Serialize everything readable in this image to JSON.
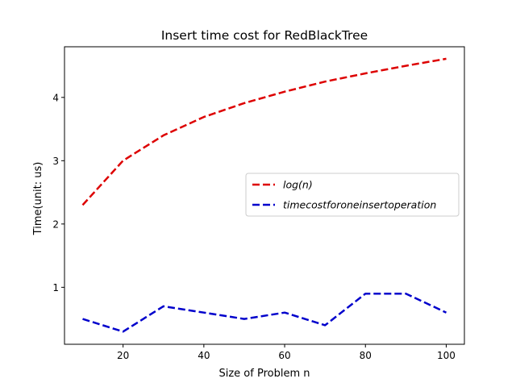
{
  "chart_data": {
    "type": "line",
    "title": "Insert time cost for RedBlackTree",
    "xlabel": "Size of Problem n",
    "ylabel": "Time(unit: us)",
    "x": [
      10,
      20,
      30,
      40,
      50,
      60,
      70,
      80,
      90,
      100
    ],
    "xlim": [
      5.5,
      104.5
    ],
    "ylim": [
      0.1,
      4.8
    ],
    "xticks": [
      20,
      40,
      60,
      80,
      100
    ],
    "yticks": [
      1,
      2,
      3,
      4
    ],
    "grid": false,
    "legend_position": "center-right",
    "series": [
      {
        "name": "log(n)",
        "color": "#dd0000",
        "line_style": "dashed",
        "values": [
          2.3,
          3.0,
          3.4,
          3.69,
          3.91,
          4.09,
          4.25,
          4.38,
          4.5,
          4.61
        ]
      },
      {
        "name": "timecostforoneinsertoperation",
        "color": "#0000cc",
        "line_style": "dashed",
        "values": [
          0.5,
          0.3,
          0.7,
          0.6,
          0.5,
          0.6,
          0.4,
          0.9,
          0.9,
          0.6
        ]
      }
    ]
  }
}
